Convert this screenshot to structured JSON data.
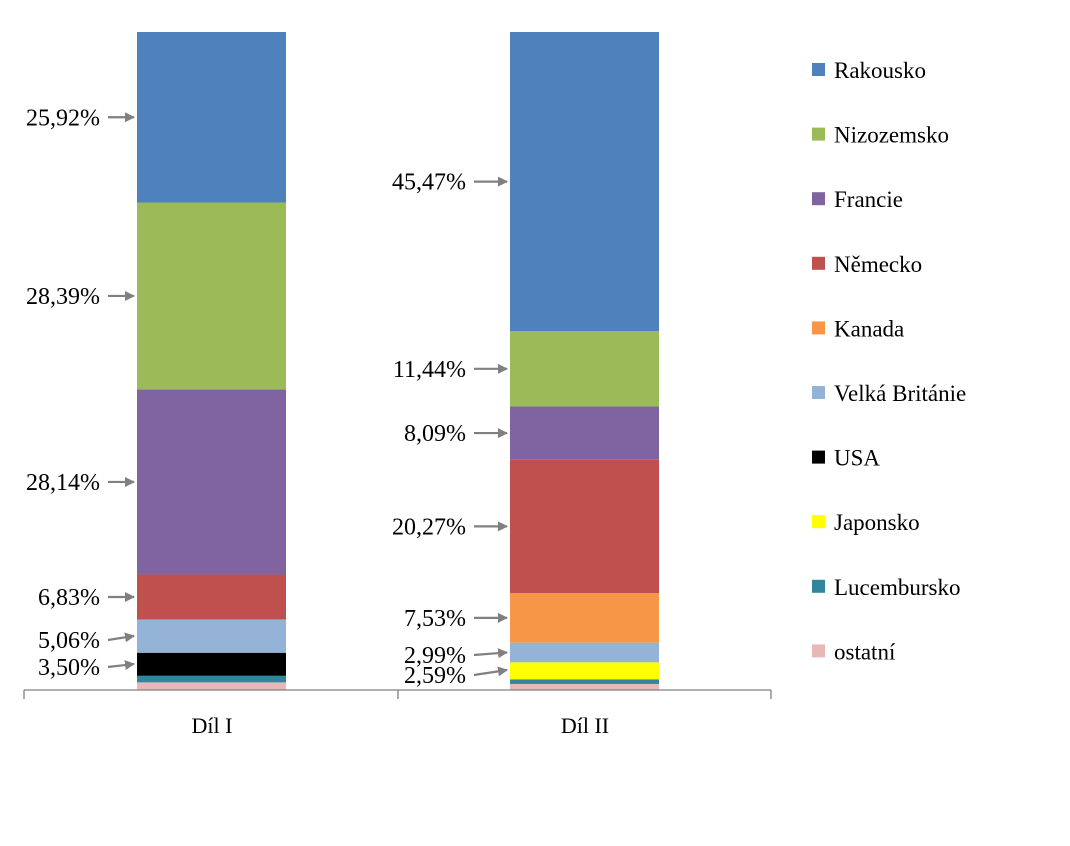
{
  "chart_data": {
    "type": "bar",
    "stacked": true,
    "percent_stacked": true,
    "categories": [
      "Díl I",
      "Díl II"
    ],
    "ylim": [
      0,
      100
    ],
    "grid": false,
    "legend_position": "right",
    "series": [
      {
        "name": "Rakousko",
        "color": "#4F81BD",
        "values": [
          25.92,
          45.47
        ]
      },
      {
        "name": "Nizozemsko",
        "color": "#9BBB59",
        "values": [
          28.39,
          11.44
        ]
      },
      {
        "name": "Francie",
        "color": "#8064A2",
        "values": [
          28.14,
          8.09
        ]
      },
      {
        "name": "Německo",
        "color": "#C0504D",
        "values": [
          6.83,
          20.27
        ]
      },
      {
        "name": "Kanada",
        "color": "#F79646",
        "values": [
          0,
          7.53
        ]
      },
      {
        "name": "Velká Británie",
        "color": "#95B3D7",
        "values": [
          5.06,
          2.99
        ]
      },
      {
        "name": "USA",
        "color": "#000000",
        "values": [
          3.5,
          0
        ]
      },
      {
        "name": "Japonsko",
        "color": "#FFFF00",
        "values": [
          0,
          2.59
        ]
      },
      {
        "name": "Lucembursko",
        "color": "#31859C",
        "values": [
          1.0,
          0.7
        ]
      },
      {
        "name": "ostatní",
        "color": "#E6B9B8",
        "values": [
          1.16,
          0.92
        ]
      }
    ],
    "data_labels": [
      {
        "category": 0,
        "series": "Rakousko",
        "text": "25,92%"
      },
      {
        "category": 0,
        "series": "Nizozemsko",
        "text": "28,39%"
      },
      {
        "category": 0,
        "series": "Francie",
        "text": "28,14%"
      },
      {
        "category": 0,
        "series": "Německo",
        "text": "6,83%"
      },
      {
        "category": 0,
        "series": "Velká Británie",
        "text": "5,06%"
      },
      {
        "category": 0,
        "series": "USA",
        "text": "3,50%"
      },
      {
        "category": 1,
        "series": "Rakousko",
        "text": "45,47%"
      },
      {
        "category": 1,
        "series": "Nizozemsko",
        "text": "11,44%"
      },
      {
        "category": 1,
        "series": "Francie",
        "text": "8,09%"
      },
      {
        "category": 1,
        "series": "Německo",
        "text": "20,27%"
      },
      {
        "category": 1,
        "series": "Kanada",
        "text": "7,53%"
      },
      {
        "category": 1,
        "series": "Velká Británie",
        "text": "2,99%"
      },
      {
        "category": 1,
        "series": "Japonsko",
        "text": "2,59%"
      }
    ]
  }
}
